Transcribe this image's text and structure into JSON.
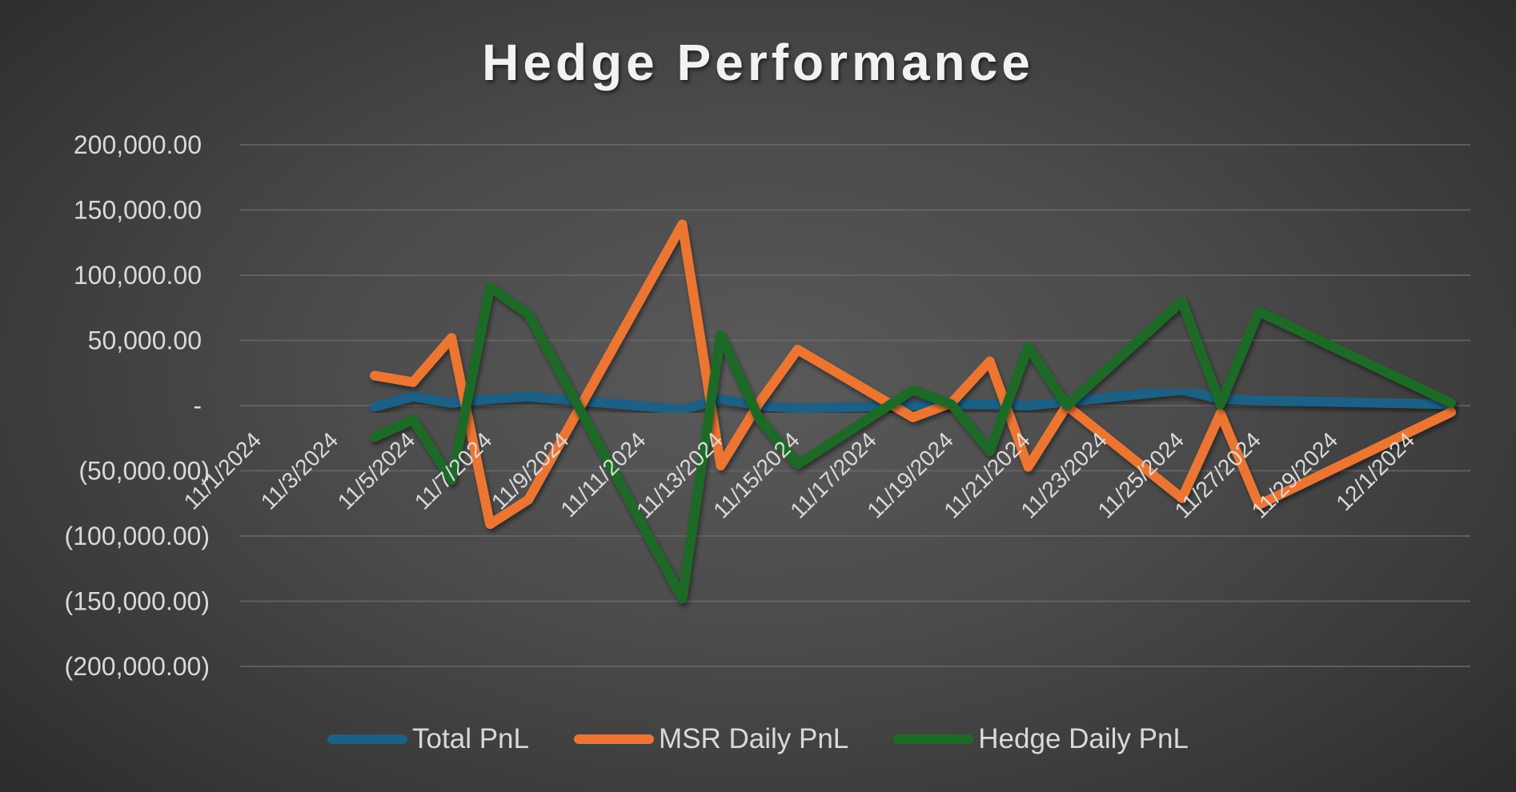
{
  "title": "Hedge Performance",
  "legend": [
    {
      "label": "Total PnL",
      "color": "#1a6186"
    },
    {
      "label": "MSR Daily PnL",
      "color": "#ed7431"
    },
    {
      "label": "Hedge Daily PnL",
      "color": "#1c6b25"
    }
  ],
  "chart_data": {
    "type": "line",
    "title": "Hedge Performance",
    "xlabel": "",
    "ylabel": "",
    "x_axis_type": "date",
    "x_range": [
      "11/1/2024",
      "12/2/2024"
    ],
    "x_tick_labels": [
      "11/1/2024",
      "11/3/2024",
      "11/5/2024",
      "11/7/2024",
      "11/9/2024",
      "11/11/2024",
      "11/13/2024",
      "11/15/2024",
      "11/17/2024",
      "11/19/2024",
      "11/21/2024",
      "11/23/2024",
      "11/25/2024",
      "11/27/2024",
      "11/29/2024",
      "12/1/2024"
    ],
    "y_tick_labels": [
      "200,000.00",
      "150,000.00",
      "100,000.00",
      "50,000.00",
      "-",
      "(50,000.00)",
      "(100,000.00)",
      "(150,000.00)",
      "(200,000.00)"
    ],
    "ylim": [
      -200000,
      200000
    ],
    "y_tick_step": 50000,
    "grid": true,
    "legend_position": "bottom",
    "x": [
      "11/4/2024",
      "11/5/2024",
      "11/6/2024",
      "11/7/2024",
      "11/8/2024",
      "11/12/2024",
      "11/13/2024",
      "11/14/2024",
      "11/15/2024",
      "11/18/2024",
      "11/19/2024",
      "11/20/2024",
      "11/21/2024",
      "11/22/2024",
      "11/25/2024",
      "11/26/2024",
      "11/27/2024",
      "12/2/2024"
    ],
    "series": [
      {
        "name": "Total PnL",
        "color": "#1a6186",
        "values": [
          -1000,
          7000,
          2000,
          5000,
          7000,
          -3000,
          5000,
          0,
          -2000,
          0,
          1000,
          1000,
          0,
          3000,
          12000,
          5000,
          4000,
          1000
        ]
      },
      {
        "name": "MSR Daily PnL",
        "color": "#ed7431",
        "values": [
          23000,
          18000,
          52000,
          -91000,
          -72000,
          139000,
          -46000,
          2000,
          43000,
          -9000,
          2000,
          34000,
          -47000,
          0,
          -71000,
          -6000,
          -76000,
          -5000
        ]
      },
      {
        "name": "Hedge Daily PnL",
        "color": "#1c6b25",
        "values": [
          -24000,
          -11000,
          -57000,
          91000,
          70000,
          -148000,
          54000,
          -10000,
          -45000,
          12000,
          1000,
          -35000,
          45000,
          0,
          80000,
          1000,
          72000,
          2000
        ]
      }
    ]
  }
}
